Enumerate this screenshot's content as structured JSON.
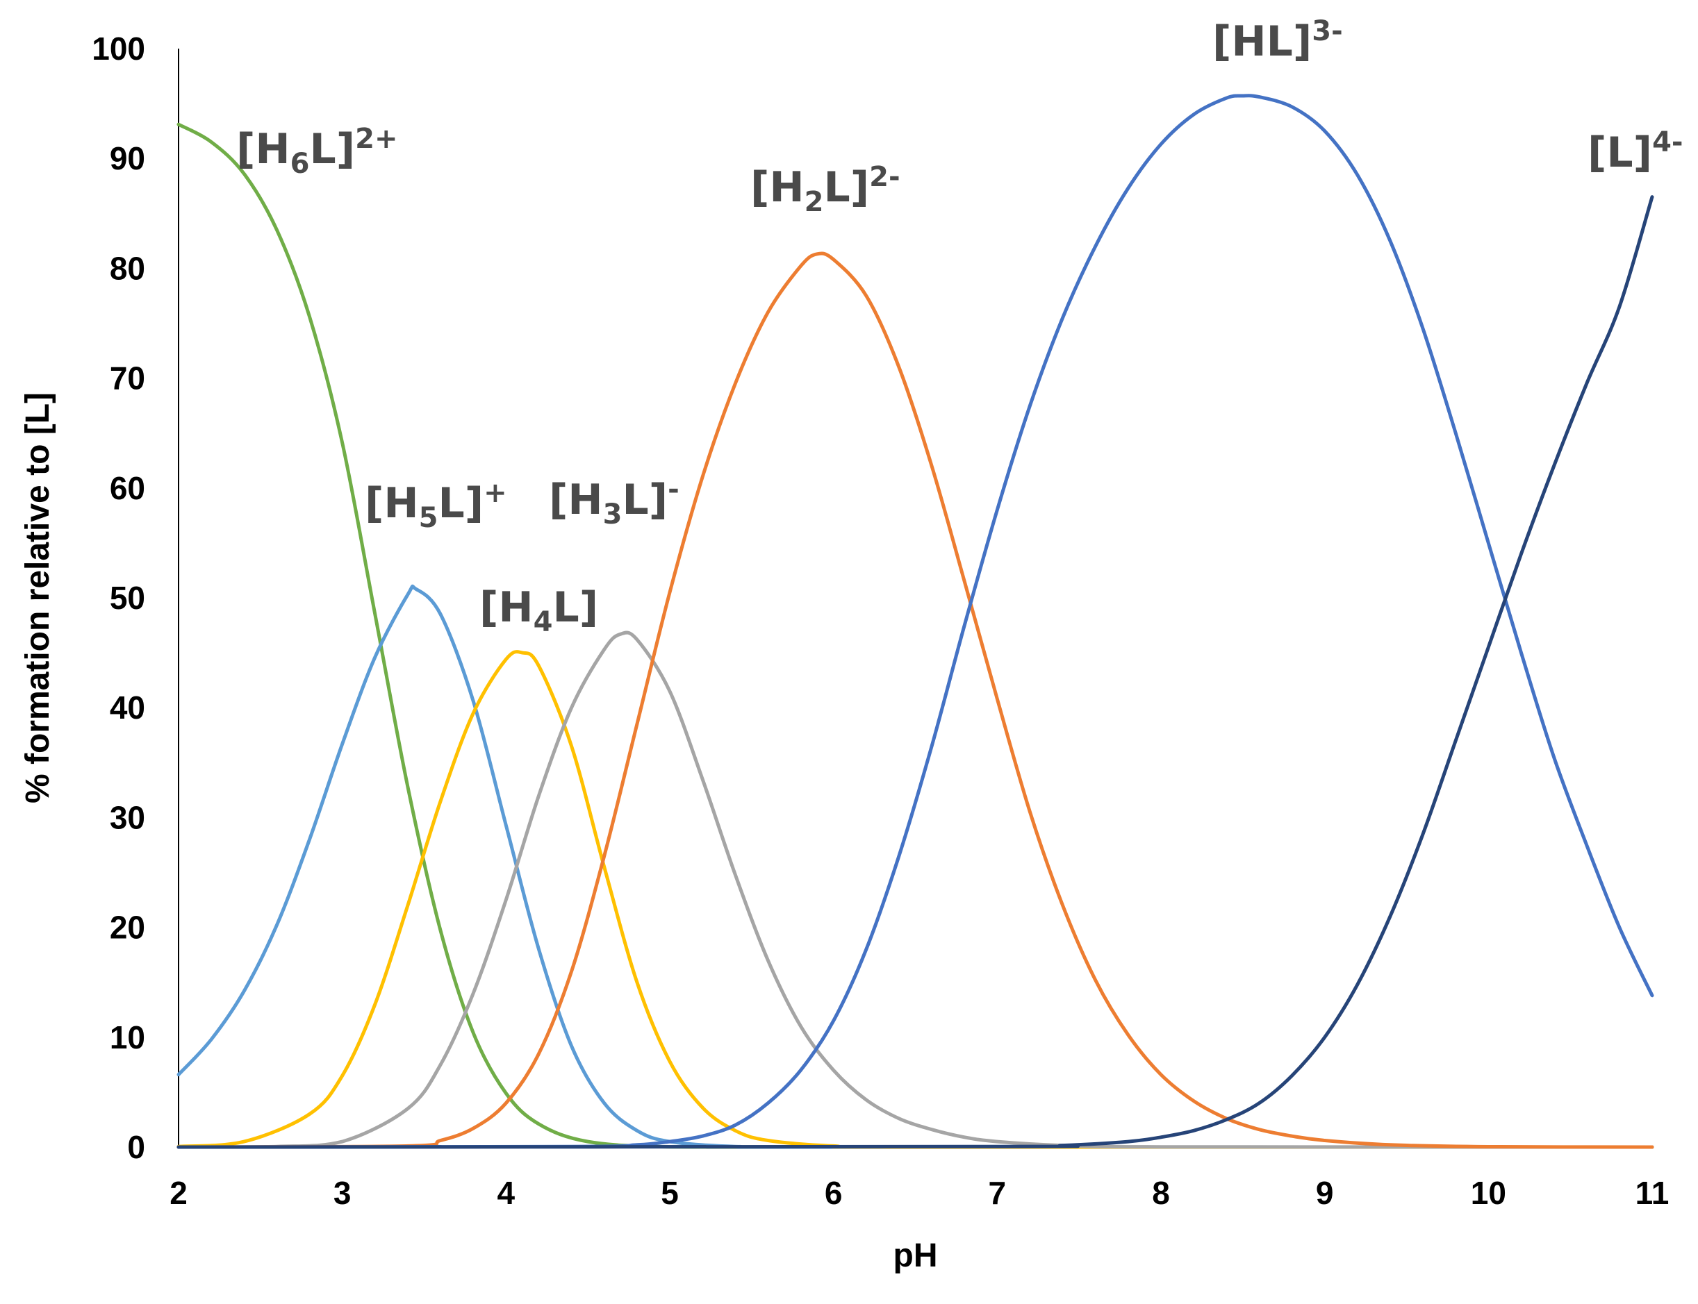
{
  "chart_data": {
    "type": "line",
    "title": "",
    "xlabel": "pH",
    "ylabel": "% formation relative to [L]",
    "xlim": [
      2,
      11
    ],
    "ylim": [
      0,
      100
    ],
    "xticks": [
      2,
      3,
      4,
      5,
      6,
      7,
      8,
      9,
      10,
      11
    ],
    "yticks": [
      0,
      10,
      20,
      30,
      40,
      50,
      60,
      70,
      80,
      90,
      100
    ],
    "xtick_labels": [
      "2",
      "3",
      "4",
      "5",
      "6",
      "7",
      "8",
      "9",
      "10",
      "11"
    ],
    "ytick_labels": [
      "0",
      "10",
      "20",
      "30",
      "40",
      "50",
      "60",
      "70",
      "80",
      "90",
      "100"
    ],
    "grid": false,
    "legend": "none",
    "series": [
      {
        "label": {
          "base": "[H",
          "sub": "6",
          "mid": "L]",
          "sup": "2+"
        },
        "color": "#70ad47",
        "points": [
          [
            2.0,
            93.1
          ],
          [
            2.2,
            91.5
          ],
          [
            2.4,
            88.6
          ],
          [
            2.6,
            83.5
          ],
          [
            2.8,
            75.6
          ],
          [
            3.0,
            64.1
          ],
          [
            3.2,
            48.5
          ],
          [
            3.4,
            32.8
          ],
          [
            3.6,
            19.7
          ],
          [
            3.8,
            10.4
          ],
          [
            4.0,
            4.9
          ],
          [
            4.2,
            2.1
          ],
          [
            4.5,
            0.5
          ],
          [
            5.0,
            0.02
          ],
          [
            6.0,
            0
          ],
          [
            11.0,
            0
          ]
        ]
      },
      {
        "label": {
          "base": "[H",
          "sub": "5",
          "mid": "L]",
          "sup": "+"
        },
        "color": "#5b9bd5",
        "points": [
          [
            2.0,
            6.6
          ],
          [
            2.2,
            9.8
          ],
          [
            2.4,
            14.2
          ],
          [
            2.6,
            20.2
          ],
          [
            2.8,
            28.0
          ],
          [
            3.0,
            36.7
          ],
          [
            3.2,
            44.6
          ],
          [
            3.4,
            50.3
          ],
          [
            3.45,
            50.8
          ],
          [
            3.6,
            48.5
          ],
          [
            3.8,
            40.6
          ],
          [
            4.0,
            29.3
          ],
          [
            4.2,
            18.0
          ],
          [
            4.4,
            9.2
          ],
          [
            4.6,
            4.0
          ],
          [
            4.8,
            1.5
          ],
          [
            5.0,
            0.5
          ],
          [
            5.4,
            0.05
          ],
          [
            6.0,
            0
          ],
          [
            11.0,
            0
          ]
        ]
      },
      {
        "label": {
          "base": "[H",
          "sub": "4",
          "mid": "L]",
          "sup": ""
        },
        "color": "#ffc000",
        "points": [
          [
            2.0,
            0.05
          ],
          [
            2.4,
            0.5
          ],
          [
            2.8,
            3.0
          ],
          [
            3.0,
            6.5
          ],
          [
            3.2,
            13.0
          ],
          [
            3.4,
            22.0
          ],
          [
            3.6,
            31.5
          ],
          [
            3.8,
            39.5
          ],
          [
            4.0,
            44.4
          ],
          [
            4.1,
            45.0
          ],
          [
            4.2,
            43.8
          ],
          [
            4.4,
            36.5
          ],
          [
            4.6,
            25.5
          ],
          [
            4.8,
            15.0
          ],
          [
            5.0,
            7.8
          ],
          [
            5.2,
            3.6
          ],
          [
            5.4,
            1.5
          ],
          [
            5.6,
            0.6
          ],
          [
            6.0,
            0.1
          ],
          [
            6.5,
            0
          ],
          [
            11.0,
            0
          ]
        ]
      },
      {
        "label": {
          "base": "[H",
          "sub": "3",
          "mid": "L]",
          "sup": "-"
        },
        "color": "#a5a5a5",
        "points": [
          [
            2.0,
            0
          ],
          [
            2.6,
            0.05
          ],
          [
            3.0,
            0.5
          ],
          [
            3.4,
            3.5
          ],
          [
            3.6,
            7.5
          ],
          [
            3.8,
            14.0
          ],
          [
            4.0,
            22.5
          ],
          [
            4.2,
            32.0
          ],
          [
            4.4,
            40.0
          ],
          [
            4.6,
            45.3
          ],
          [
            4.7,
            46.7
          ],
          [
            4.8,
            46.2
          ],
          [
            5.0,
            41.5
          ],
          [
            5.2,
            33.5
          ],
          [
            5.4,
            24.8
          ],
          [
            5.6,
            17.0
          ],
          [
            5.8,
            11.0
          ],
          [
            6.0,
            7.0
          ],
          [
            6.2,
            4.3
          ],
          [
            6.4,
            2.6
          ],
          [
            6.6,
            1.6
          ],
          [
            6.8,
            0.9
          ],
          [
            7.0,
            0.5
          ],
          [
            7.4,
            0.15
          ],
          [
            8.0,
            0.02
          ],
          [
            11.0,
            0
          ]
        ]
      },
      {
        "label": {
          "base": "[H",
          "sub": "2",
          "mid": "L]",
          "sup": "2-"
        },
        "color": "#ed7d31",
        "points": [
          [
            2.0,
            0
          ],
          [
            3.4,
            0.1
          ],
          [
            3.6,
            0.6
          ],
          [
            3.8,
            1.7
          ],
          [
            4.0,
            4.0
          ],
          [
            4.2,
            8.5
          ],
          [
            4.4,
            16.0
          ],
          [
            4.6,
            26.5
          ],
          [
            4.8,
            38.5
          ],
          [
            5.0,
            50.5
          ],
          [
            5.2,
            61.0
          ],
          [
            5.4,
            69.5
          ],
          [
            5.6,
            76.0
          ],
          [
            5.8,
            80.2
          ],
          [
            5.9,
            81.3
          ],
          [
            6.0,
            80.8
          ],
          [
            6.2,
            77.5
          ],
          [
            6.4,
            71.0
          ],
          [
            6.6,
            62.0
          ],
          [
            6.8,
            51.5
          ],
          [
            7.0,
            40.8
          ],
          [
            7.2,
            30.5
          ],
          [
            7.4,
            22.0
          ],
          [
            7.6,
            15.2
          ],
          [
            7.8,
            10.2
          ],
          [
            8.0,
            6.6
          ],
          [
            8.2,
            4.2
          ],
          [
            8.4,
            2.6
          ],
          [
            8.6,
            1.6
          ],
          [
            8.8,
            1.0
          ],
          [
            9.0,
            0.6
          ],
          [
            9.4,
            0.2
          ],
          [
            10.0,
            0.03
          ],
          [
            11.0,
            0
          ]
        ]
      },
      {
        "label": {
          "base": "[HL]",
          "sub": "",
          "mid": "",
          "sup": "3-"
        },
        "color": "#4472c4",
        "points": [
          [
            2.0,
            0
          ],
          [
            4.4,
            0.05
          ],
          [
            4.8,
            0.2
          ],
          [
            5.0,
            0.5
          ],
          [
            5.2,
            1.0
          ],
          [
            5.4,
            2.0
          ],
          [
            5.6,
            4.0
          ],
          [
            5.8,
            7.0
          ],
          [
            6.0,
            11.5
          ],
          [
            6.2,
            18.0
          ],
          [
            6.4,
            26.5
          ],
          [
            6.6,
            36.5
          ],
          [
            6.8,
            47.5
          ],
          [
            7.0,
            58.0
          ],
          [
            7.2,
            67.5
          ],
          [
            7.4,
            75.5
          ],
          [
            7.6,
            82.0
          ],
          [
            7.8,
            87.3
          ],
          [
            8.0,
            91.3
          ],
          [
            8.2,
            94.0
          ],
          [
            8.4,
            95.5
          ],
          [
            8.5,
            95.7
          ],
          [
            8.6,
            95.6
          ],
          [
            8.8,
            94.7
          ],
          [
            9.0,
            92.5
          ],
          [
            9.2,
            88.5
          ],
          [
            9.4,
            82.5
          ],
          [
            9.6,
            74.5
          ],
          [
            9.8,
            65.0
          ],
          [
            10.0,
            55.0
          ],
          [
            10.2,
            45.0
          ],
          [
            10.4,
            35.5
          ],
          [
            10.6,
            27.5
          ],
          [
            10.8,
            20.0
          ],
          [
            11.0,
            13.8
          ]
        ]
      },
      {
        "label": {
          "base": "[L]",
          "sub": "",
          "mid": "",
          "sup": "4-"
        },
        "color": "#264478",
        "points": [
          [
            2.0,
            0
          ],
          [
            7.0,
            0.05
          ],
          [
            7.4,
            0.15
          ],
          [
            7.8,
            0.5
          ],
          [
            8.0,
            0.9
          ],
          [
            8.2,
            1.5
          ],
          [
            8.4,
            2.5
          ],
          [
            8.6,
            4.0
          ],
          [
            8.8,
            6.5
          ],
          [
            9.0,
            10.0
          ],
          [
            9.2,
            14.8
          ],
          [
            9.4,
            21.0
          ],
          [
            9.6,
            28.5
          ],
          [
            9.8,
            37.0
          ],
          [
            10.0,
            45.5
          ],
          [
            10.2,
            54.0
          ],
          [
            10.4,
            62.0
          ],
          [
            10.6,
            69.5
          ],
          [
            10.8,
            76.5
          ],
          [
            11.0,
            86.5
          ]
        ]
      }
    ]
  }
}
